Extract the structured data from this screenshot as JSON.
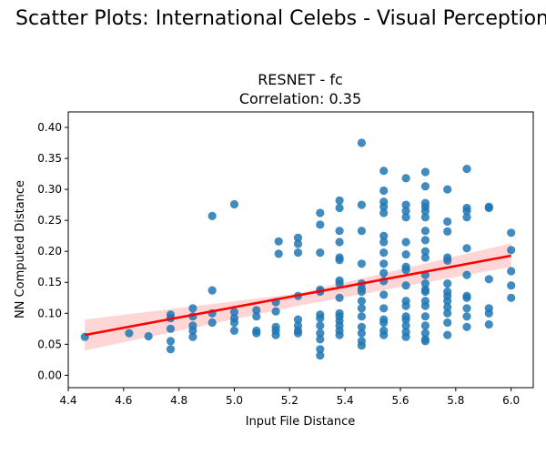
{
  "figure": {
    "suptitle": "Scatter Plots: International Celebs - Visual Perception"
  },
  "chart_data": {
    "type": "scatter",
    "title": "RESNET - fc",
    "subtitle": "Correlation: 0.35",
    "xlabel": "Input File Distance",
    "ylabel": "NN Computed Distance",
    "xlim": [
      4.4,
      6.08
    ],
    "ylim": [
      -0.02,
      0.425
    ],
    "xticks": [
      "4.4",
      "4.6",
      "4.8",
      "5.0",
      "5.2",
      "5.4",
      "5.6",
      "5.8",
      "6.0"
    ],
    "yticks": [
      "0.00",
      "0.05",
      "0.10",
      "0.15",
      "0.20",
      "0.25",
      "0.30",
      "0.35",
      "0.40"
    ],
    "grid": false,
    "point_color": "#1f77b4",
    "regression": {
      "color": "#ff0000",
      "ci_color": "#ffcccc",
      "start": [
        4.46,
        0.065
      ],
      "end": [
        6.0,
        0.193
      ],
      "ci_start": [
        0.04,
        0.09
      ],
      "ci_mid": [
        0.112,
        0.132
      ],
      "ci_end": [
        0.175,
        0.213
      ]
    },
    "points": [
      {
        "x": 4.46,
        "y": 0.062
      },
      {
        "x": 4.62,
        "y": 0.068
      },
      {
        "x": 4.69,
        "y": 0.063
      },
      {
        "x": 4.77,
        "y": 0.098
      },
      {
        "x": 4.77,
        "y": 0.092
      },
      {
        "x": 4.77,
        "y": 0.075
      },
      {
        "x": 4.77,
        "y": 0.055
      },
      {
        "x": 4.77,
        "y": 0.042
      },
      {
        "x": 4.85,
        "y": 0.108
      },
      {
        "x": 4.85,
        "y": 0.095
      },
      {
        "x": 4.85,
        "y": 0.08
      },
      {
        "x": 4.85,
        "y": 0.072
      },
      {
        "x": 4.85,
        "y": 0.062
      },
      {
        "x": 4.92,
        "y": 0.257
      },
      {
        "x": 4.92,
        "y": 0.137
      },
      {
        "x": 4.92,
        "y": 0.1
      },
      {
        "x": 4.92,
        "y": 0.085
      },
      {
        "x": 5.0,
        "y": 0.276
      },
      {
        "x": 5.0,
        "y": 0.102
      },
      {
        "x": 5.0,
        "y": 0.092
      },
      {
        "x": 5.0,
        "y": 0.085
      },
      {
        "x": 5.0,
        "y": 0.072
      },
      {
        "x": 5.08,
        "y": 0.105
      },
      {
        "x": 5.08,
        "y": 0.095
      },
      {
        "x": 5.08,
        "y": 0.072
      },
      {
        "x": 5.08,
        "y": 0.068
      },
      {
        "x": 5.15,
        "y": 0.118
      },
      {
        "x": 5.15,
        "y": 0.103
      },
      {
        "x": 5.15,
        "y": 0.078
      },
      {
        "x": 5.15,
        "y": 0.072
      },
      {
        "x": 5.15,
        "y": 0.065
      },
      {
        "x": 5.16,
        "y": 0.216
      },
      {
        "x": 5.16,
        "y": 0.196
      },
      {
        "x": 5.23,
        "y": 0.222
      },
      {
        "x": 5.23,
        "y": 0.212
      },
      {
        "x": 5.23,
        "y": 0.198
      },
      {
        "x": 5.23,
        "y": 0.128
      },
      {
        "x": 5.23,
        "y": 0.09
      },
      {
        "x": 5.23,
        "y": 0.08
      },
      {
        "x": 5.23,
        "y": 0.072
      },
      {
        "x": 5.23,
        "y": 0.068
      },
      {
        "x": 5.31,
        "y": 0.262
      },
      {
        "x": 5.31,
        "y": 0.243
      },
      {
        "x": 5.31,
        "y": 0.198
      },
      {
        "x": 5.31,
        "y": 0.138
      },
      {
        "x": 5.31,
        "y": 0.135
      },
      {
        "x": 5.31,
        "y": 0.098
      },
      {
        "x": 5.31,
        "y": 0.092
      },
      {
        "x": 5.31,
        "y": 0.08
      },
      {
        "x": 5.31,
        "y": 0.068
      },
      {
        "x": 5.31,
        "y": 0.058
      },
      {
        "x": 5.31,
        "y": 0.042
      },
      {
        "x": 5.31,
        "y": 0.032
      },
      {
        "x": 5.38,
        "y": 0.282
      },
      {
        "x": 5.38,
        "y": 0.27
      },
      {
        "x": 5.38,
        "y": 0.233
      },
      {
        "x": 5.38,
        "y": 0.215
      },
      {
        "x": 5.38,
        "y": 0.19
      },
      {
        "x": 5.38,
        "y": 0.186
      },
      {
        "x": 5.38,
        "y": 0.153
      },
      {
        "x": 5.38,
        "y": 0.148
      },
      {
        "x": 5.38,
        "y": 0.125
      },
      {
        "x": 5.38,
        "y": 0.1
      },
      {
        "x": 5.38,
        "y": 0.095
      },
      {
        "x": 5.38,
        "y": 0.088
      },
      {
        "x": 5.38,
        "y": 0.08
      },
      {
        "x": 5.38,
        "y": 0.072
      },
      {
        "x": 5.38,
        "y": 0.065
      },
      {
        "x": 5.46,
        "y": 0.375
      },
      {
        "x": 5.46,
        "y": 0.275
      },
      {
        "x": 5.46,
        "y": 0.233
      },
      {
        "x": 5.46,
        "y": 0.18
      },
      {
        "x": 5.46,
        "y": 0.148
      },
      {
        "x": 5.46,
        "y": 0.14
      },
      {
        "x": 5.46,
        "y": 0.135
      },
      {
        "x": 5.46,
        "y": 0.12
      },
      {
        "x": 5.46,
        "y": 0.108
      },
      {
        "x": 5.46,
        "y": 0.095
      },
      {
        "x": 5.46,
        "y": 0.078
      },
      {
        "x": 5.46,
        "y": 0.068
      },
      {
        "x": 5.46,
        "y": 0.055
      },
      {
        "x": 5.46,
        "y": 0.048
      },
      {
        "x": 5.54,
        "y": 0.33
      },
      {
        "x": 5.54,
        "y": 0.298
      },
      {
        "x": 5.54,
        "y": 0.28
      },
      {
        "x": 5.54,
        "y": 0.272
      },
      {
        "x": 5.54,
        "y": 0.262
      },
      {
        "x": 5.54,
        "y": 0.225
      },
      {
        "x": 5.54,
        "y": 0.215
      },
      {
        "x": 5.54,
        "y": 0.198
      },
      {
        "x": 5.54,
        "y": 0.18
      },
      {
        "x": 5.54,
        "y": 0.165
      },
      {
        "x": 5.54,
        "y": 0.152
      },
      {
        "x": 5.54,
        "y": 0.13
      },
      {
        "x": 5.54,
        "y": 0.108
      },
      {
        "x": 5.54,
        "y": 0.09
      },
      {
        "x": 5.54,
        "y": 0.085
      },
      {
        "x": 5.54,
        "y": 0.072
      },
      {
        "x": 5.54,
        "y": 0.065
      },
      {
        "x": 5.62,
        "y": 0.318
      },
      {
        "x": 5.62,
        "y": 0.275
      },
      {
        "x": 5.62,
        "y": 0.265
      },
      {
        "x": 5.62,
        "y": 0.255
      },
      {
        "x": 5.62,
        "y": 0.215
      },
      {
        "x": 5.62,
        "y": 0.195
      },
      {
        "x": 5.62,
        "y": 0.175
      },
      {
        "x": 5.62,
        "y": 0.17
      },
      {
        "x": 5.62,
        "y": 0.145
      },
      {
        "x": 5.62,
        "y": 0.12
      },
      {
        "x": 5.62,
        "y": 0.112
      },
      {
        "x": 5.62,
        "y": 0.095
      },
      {
        "x": 5.62,
        "y": 0.09
      },
      {
        "x": 5.62,
        "y": 0.08
      },
      {
        "x": 5.62,
        "y": 0.07
      },
      {
        "x": 5.62,
        "y": 0.062
      },
      {
        "x": 5.69,
        "y": 0.328
      },
      {
        "x": 5.69,
        "y": 0.305
      },
      {
        "x": 5.69,
        "y": 0.278
      },
      {
        "x": 5.69,
        "y": 0.272
      },
      {
        "x": 5.69,
        "y": 0.265
      },
      {
        "x": 5.69,
        "y": 0.255
      },
      {
        "x": 5.69,
        "y": 0.233
      },
      {
        "x": 5.69,
        "y": 0.218
      },
      {
        "x": 5.69,
        "y": 0.2
      },
      {
        "x": 5.69,
        "y": 0.19
      },
      {
        "x": 5.69,
        "y": 0.162
      },
      {
        "x": 5.69,
        "y": 0.148
      },
      {
        "x": 5.69,
        "y": 0.138
      },
      {
        "x": 5.69,
        "y": 0.135
      },
      {
        "x": 5.69,
        "y": 0.12
      },
      {
        "x": 5.69,
        "y": 0.112
      },
      {
        "x": 5.69,
        "y": 0.095
      },
      {
        "x": 5.69,
        "y": 0.08
      },
      {
        "x": 5.69,
        "y": 0.068
      },
      {
        "x": 5.69,
        "y": 0.058
      },
      {
        "x": 5.69,
        "y": 0.055
      },
      {
        "x": 5.77,
        "y": 0.3
      },
      {
        "x": 5.77,
        "y": 0.248
      },
      {
        "x": 5.77,
        "y": 0.232
      },
      {
        "x": 5.77,
        "y": 0.19
      },
      {
        "x": 5.77,
        "y": 0.185
      },
      {
        "x": 5.77,
        "y": 0.148
      },
      {
        "x": 5.77,
        "y": 0.135
      },
      {
        "x": 5.77,
        "y": 0.128
      },
      {
        "x": 5.77,
        "y": 0.12
      },
      {
        "x": 5.77,
        "y": 0.11
      },
      {
        "x": 5.77,
        "y": 0.1
      },
      {
        "x": 5.77,
        "y": 0.085
      },
      {
        "x": 5.77,
        "y": 0.065
      },
      {
        "x": 5.84,
        "y": 0.333
      },
      {
        "x": 5.84,
        "y": 0.27
      },
      {
        "x": 5.84,
        "y": 0.265
      },
      {
        "x": 5.84,
        "y": 0.255
      },
      {
        "x": 5.84,
        "y": 0.205
      },
      {
        "x": 5.84,
        "y": 0.162
      },
      {
        "x": 5.84,
        "y": 0.128
      },
      {
        "x": 5.84,
        "y": 0.125
      },
      {
        "x": 5.84,
        "y": 0.108
      },
      {
        "x": 5.84,
        "y": 0.095
      },
      {
        "x": 5.84,
        "y": 0.078
      },
      {
        "x": 5.92,
        "y": 0.272
      },
      {
        "x": 5.92,
        "y": 0.27
      },
      {
        "x": 5.92,
        "y": 0.155
      },
      {
        "x": 5.92,
        "y": 0.108
      },
      {
        "x": 5.92,
        "y": 0.1
      },
      {
        "x": 5.92,
        "y": 0.082
      },
      {
        "x": 6.0,
        "y": 0.23
      },
      {
        "x": 6.0,
        "y": 0.202
      },
      {
        "x": 6.0,
        "y": 0.168
      },
      {
        "x": 6.0,
        "y": 0.145
      },
      {
        "x": 6.0,
        "y": 0.125
      }
    ]
  }
}
